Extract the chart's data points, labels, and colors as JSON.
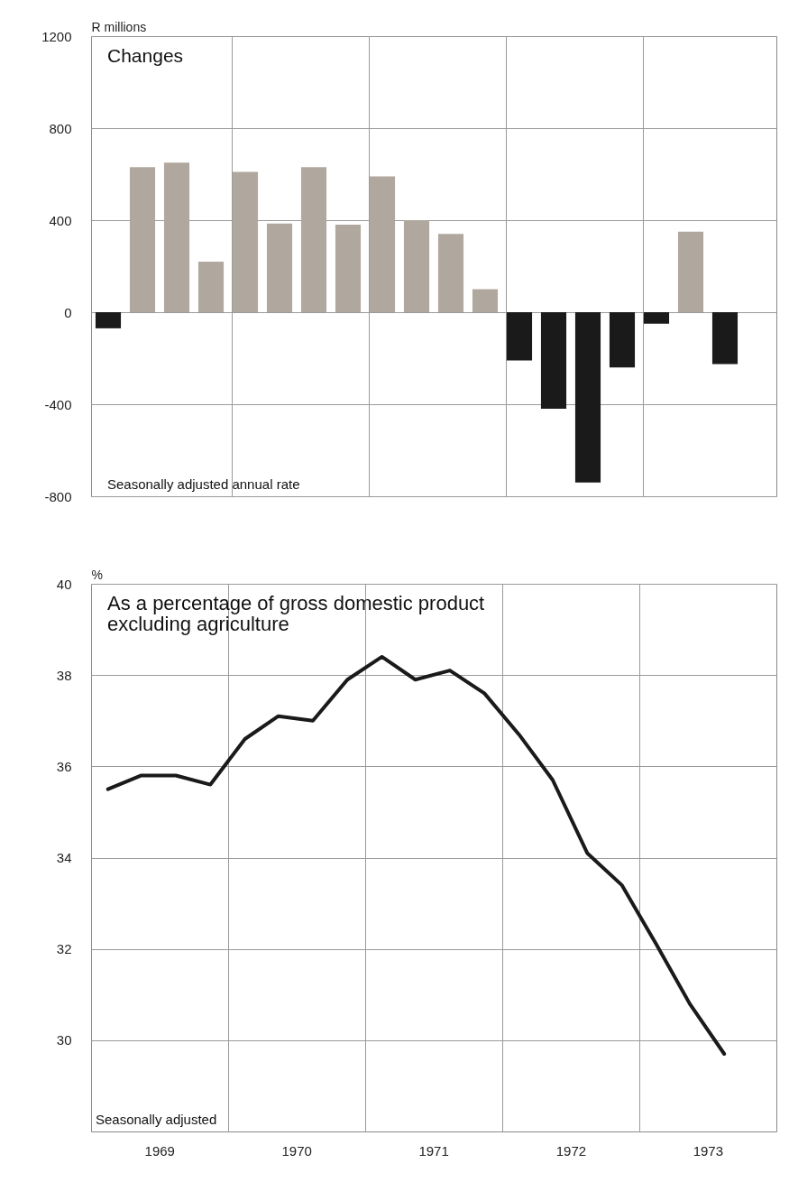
{
  "chart_data": [
    {
      "type": "bar",
      "title": "Changes",
      "ylabel": "R millions",
      "categories": [
        null,
        null,
        null,
        null,
        null,
        null,
        null,
        null,
        null,
        null,
        null,
        null,
        null,
        null,
        null,
        null,
        null,
        null,
        null,
        null
      ],
      "values": [
        -70,
        630,
        650,
        220,
        610,
        385,
        630,
        380,
        590,
        400,
        340,
        100,
        -210,
        -420,
        -740,
        -240,
        -50,
        350,
        -225,
        null
      ],
      "colors": [
        "#1a1a1a",
        "#b0a89e",
        "#b0a89e",
        "#b0a89e",
        "#b0a89e",
        "#b0a89e",
        "#b0a89e",
        "#b0a89e",
        "#b0a89e",
        "#b0a89e",
        "#b0a89e",
        "#b0a89e",
        "#1a1a1a",
        "#1a1a1a",
        "#1a1a1a",
        "#1a1a1a",
        "#1a1a1a",
        "#b0a89e",
        "#1a1a1a",
        null
      ],
      "ylim": [
        -800,
        1200
      ],
      "yticks": [
        -800,
        -400,
        0,
        400,
        800,
        1200
      ],
      "grid": true,
      "tick_labels": "y",
      "annotations": [
        "Seasonally adjusted annual rate"
      ]
    },
    {
      "type": "line",
      "title": "As a percentage of gross domestic product\nexcluding agriculture",
      "ylabel": "%",
      "x": [
        "1969-02-15",
        "1969-05-15",
        "1969-08-15",
        "1969-11-15",
        "1970-02-15",
        "1970-05-15",
        "1970-08-15",
        "1970-11-15",
        "1971-02-15",
        "1971-05-15",
        "1971-08-15",
        "1971-11-15",
        "1972-02-15",
        "1972-05-15",
        "1972-08-15",
        "1972-11-15",
        "1973-02-15",
        "1973-05-15",
        "1973-08-15"
      ],
      "series": [
        {
          "color": "#1a1a1a",
          "values": [
            35.5,
            35.8,
            35.8,
            35.6,
            36.6,
            37.1,
            37.0,
            37.9,
            38.4,
            37.9,
            38.1,
            37.6,
            36.7,
            35.7,
            34.1,
            33.4,
            32.1,
            30.8,
            29.7
          ]
        }
      ],
      "xlim": [
        "1969",
        "1974"
      ],
      "xticks": [
        {
          "value": "1969-07-02",
          "label": "1969"
        },
        {
          "value": "1970",
          "label": null
        },
        {
          "value": "1970-07-02",
          "label": "1970"
        },
        {
          "value": "1971",
          "label": null
        },
        {
          "value": "1971-07-02",
          "label": "1971"
        },
        {
          "value": "1972",
          "label": null
        },
        {
          "value": "1972-07-02",
          "label": "1972"
        },
        {
          "value": "1973",
          "label": null
        },
        {
          "value": "1973-07-02",
          "label": "1973"
        }
      ],
      "ylim": [
        28,
        40
      ],
      "yticks": [
        30,
        32,
        34,
        36,
        38,
        40
      ],
      "grid": true,
      "line_style": "solid",
      "annotations": [
        "Seasonally adjusted"
      ]
    }
  ]
}
